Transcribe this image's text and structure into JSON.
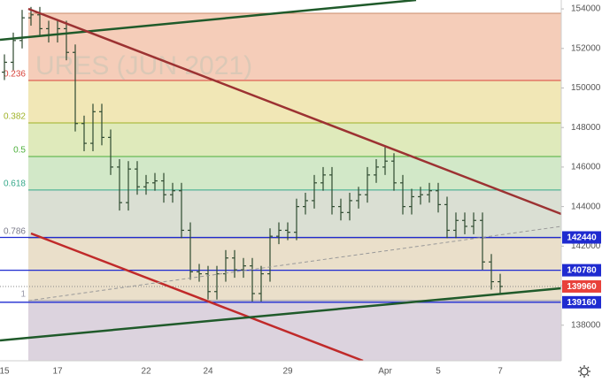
{
  "chart_data": {
    "type": "ohlc",
    "watermark": "URES (JUN 2021)",
    "categories": [
      "15",
      null,
      null,
      null,
      null,
      null,
      "17",
      null,
      null,
      null,
      null,
      null,
      null,
      null,
      null,
      null,
      "22",
      null,
      null,
      null,
      null,
      null,
      null,
      "24",
      null,
      null,
      null,
      null,
      null,
      null,
      null,
      null,
      "29",
      null,
      null,
      null,
      null,
      null,
      null,
      null,
      null,
      null,
      null,
      "Apr",
      null,
      null,
      null,
      null,
      null,
      "5",
      null,
      null,
      null,
      null,
      null,
      null,
      "7"
    ],
    "color": "#2e4a30",
    "series": [
      {
        "open": [
          150800,
          151300,
          152400,
          153550,
          153700,
          153000,
          152700,
          153000,
          151800,
          148200,
          147200,
          148800,
          147500,
          146000,
          144200,
          145900,
          145000,
          145200,
          145300,
          144600,
          144800,
          142800,
          140700,
          140600,
          139700,
          140600,
          141400,
          140800,
          141000,
          139600,
          140600,
          142500,
          142800,
          142700,
          144000,
          144300,
          145200,
          145600,
          144000,
          143700,
          144300,
          144600,
          145600,
          146000,
          146300,
          145200,
          144000,
          144500,
          144600,
          144800,
          144100,
          142800,
          143300,
          143000,
          143300,
          141200,
          140200
        ],
        "high": [
          151700,
          152800,
          153950,
          154100,
          154100,
          153400,
          153400,
          153400,
          152200,
          148600,
          149200,
          149200,
          147900,
          146400,
          146300,
          146300,
          145600,
          145700,
          145700,
          145200,
          145200,
          143200,
          141100,
          141000,
          141000,
          141800,
          141800,
          141400,
          141400,
          141000,
          142900,
          143200,
          143200,
          144400,
          144700,
          145600,
          146000,
          146000,
          144400,
          144700,
          145000,
          146000,
          146400,
          147000,
          146700,
          145600,
          144900,
          145000,
          145200,
          145200,
          144500,
          143700,
          143700,
          143700,
          143700,
          141600,
          140600
        ],
        "low": [
          150400,
          150900,
          152000,
          153150,
          152600,
          152300,
          152300,
          151400,
          147800,
          146800,
          146800,
          147100,
          145600,
          143800,
          143800,
          144600,
          144600,
          144800,
          144200,
          144200,
          142400,
          140300,
          140200,
          139300,
          139300,
          140200,
          140400,
          140400,
          139200,
          139200,
          140200,
          142100,
          142300,
          142300,
          143600,
          143900,
          144800,
          143600,
          143300,
          143300,
          143900,
          144200,
          145200,
          145600,
          144800,
          143600,
          143600,
          144100,
          144200,
          143700,
          142400,
          142400,
          142600,
          142600,
          140800,
          139800,
          139560
        ],
        "close": [
          151300,
          152400,
          153550,
          153700,
          153000,
          152700,
          153000,
          151800,
          148200,
          147200,
          148800,
          147500,
          146000,
          144200,
          145900,
          145000,
          145200,
          145300,
          144600,
          144800,
          142800,
          140700,
          140600,
          139700,
          140600,
          141400,
          140800,
          141000,
          139600,
          140600,
          142500,
          142800,
          142700,
          144000,
          144300,
          145200,
          145600,
          144000,
          143700,
          144300,
          144600,
          145600,
          146000,
          146300,
          145200,
          144000,
          144500,
          144600,
          144800,
          144100,
          142800,
          143300,
          143000,
          143300,
          141200,
          140200,
          139960
        ]
      }
    ],
    "ylim": [
      136200,
      154450
    ],
    "yticks": [
      154000,
      152000,
      150000,
      148000,
      146000,
      144000,
      142000,
      140000,
      138000
    ],
    "fib_levels": [
      {
        "label": null,
        "value": 153780,
        "color": "#c98a6a",
        "fill": "#f5cdb9"
      },
      {
        "label": "0.236",
        "value": 150380,
        "color": "#d9443b",
        "fill": "#f1e7b6"
      },
      {
        "label": "0.382",
        "value": 148235,
        "color": "#9fb227",
        "fill": "#dfeabb"
      },
      {
        "label": "0.5",
        "value": 146535,
        "color": "#4caf3a",
        "fill": "#d2e8c8"
      },
      {
        "label": "0.618",
        "value": 144840,
        "color": "#35a88a",
        "fill": "#dadfd3"
      },
      {
        "label": "0.786",
        "value": 142420,
        "color": "#7a7a8a",
        "fill": "#eadfca"
      },
      {
        "label": "1",
        "value": 139250,
        "color": "#9a9aa8",
        "fill": "#dcd3de"
      }
    ],
    "price_lines": [
      {
        "value": 142440,
        "color": "#1f2bd0"
      },
      {
        "value": 140780,
        "color": "#1f2bd0"
      },
      {
        "value": 139160,
        "color": "#1f2bd0"
      }
    ],
    "last_price": {
      "value": 139960,
      "color": "#e8413b"
    }
  }
}
